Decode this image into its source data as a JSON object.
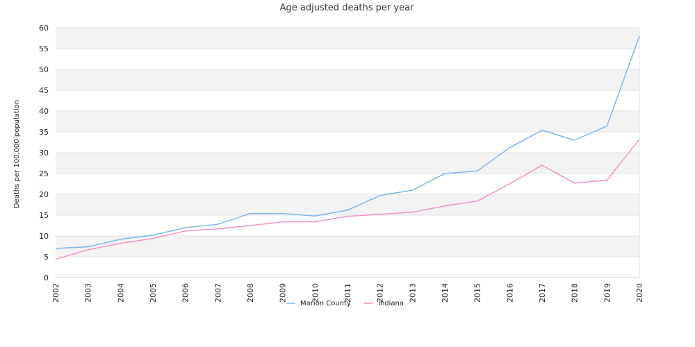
{
  "chart_data": {
    "type": "line",
    "title": "Age adjusted deaths per year",
    "xlabel": "",
    "ylabel": "Deaths per 100,000 population",
    "ylim": [
      0,
      60
    ],
    "yticks": [
      0,
      5,
      10,
      15,
      20,
      25,
      30,
      35,
      40,
      45,
      50,
      55,
      60
    ],
    "grid": "horizontal alternating bands",
    "legend": "bottom-center",
    "categories": [
      "2002",
      "2003",
      "2004",
      "2005",
      "2006",
      "2007",
      "2008",
      "2009",
      "2010",
      "2011",
      "2012",
      "2013",
      "2014",
      "2015",
      "2016",
      "2017",
      "2018",
      "2019",
      "2020"
    ],
    "series": [
      {
        "name": "Marion County",
        "color": "#7cb5ec",
        "values": [
          7.0,
          7.4,
          9.2,
          10.2,
          12.0,
          12.8,
          15.4,
          15.4,
          14.8,
          16.2,
          19.7,
          21.0,
          25.0,
          25.6,
          31.2,
          35.4,
          33.0,
          36.4,
          58.0
        ]
      },
      {
        "name": "Indiana",
        "color": "#f391c7",
        "values": [
          4.4,
          6.7,
          8.2,
          9.4,
          11.2,
          11.7,
          12.5,
          13.4,
          13.4,
          14.7,
          15.2,
          15.7,
          17.2,
          18.4,
          22.5,
          27.0,
          22.7,
          23.4,
          33.2
        ]
      }
    ]
  }
}
